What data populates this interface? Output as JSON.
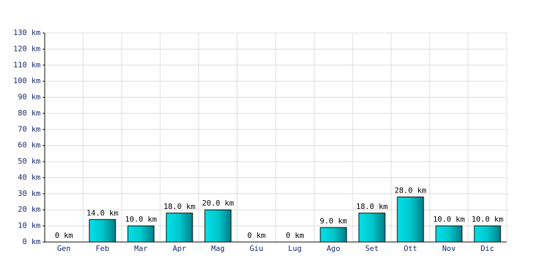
{
  "chart_data": {
    "type": "bar",
    "categories": [
      "Gen",
      "Feb",
      "Mar",
      "Apr",
      "Mag",
      "Giu",
      "Lug",
      "Ago",
      "Set",
      "Ott",
      "Nov",
      "Dic"
    ],
    "values": [
      0,
      14,
      10,
      18,
      20,
      0,
      0,
      9,
      18,
      28,
      10,
      10
    ],
    "value_labels": [
      "0 km",
      "14.0 km",
      "10.0 km",
      "18.0 km",
      "20.0 km",
      "0 km",
      "0 km",
      "9.0 km",
      "18.0 km",
      "28.0 km",
      "10.0 km",
      "10.0 km"
    ],
    "color": "#00c0c8",
    "ylim": [
      0,
      130
    ],
    "yticks": [
      {
        "value": 0,
        "label": "0 km"
      },
      {
        "value": 10,
        "label": "10 km"
      },
      {
        "value": 20,
        "label": "20 km"
      },
      {
        "value": 30,
        "label": "30 km"
      },
      {
        "value": 40,
        "label": "40 km"
      },
      {
        "value": 50,
        "label": "50 km"
      },
      {
        "value": 60,
        "label": "60 km"
      },
      {
        "value": 70,
        "label": "70 km"
      },
      {
        "value": 80,
        "label": "80 km"
      },
      {
        "value": 90,
        "label": "90 km"
      },
      {
        "value": 100,
        "label": "100 km"
      },
      {
        "value": 110,
        "label": "110 km"
      },
      {
        "value": 120,
        "label": "120 km"
      },
      {
        "value": 130,
        "label": "130 km"
      }
    ],
    "grid": true
  }
}
